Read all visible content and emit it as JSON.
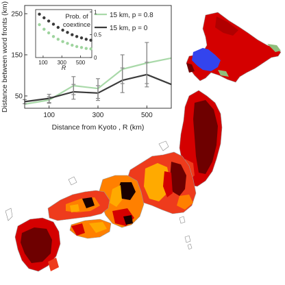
{
  "colors": {
    "map_dark_red": "#6e0000",
    "map_red": "#d40000",
    "map_orange_red": "#ee3b1c",
    "map_orange": "#ff8000",
    "map_amber": "#ffaa00",
    "map_black": "#1a0000",
    "map_blue": "#3344ee",
    "map_green": "#8fbe7c",
    "series_light": "#a9d9a9",
    "series_dark": "#3b3b3b",
    "inset_dark_dots": "#3a3a3a",
    "inset_light_dots": "#9ed49e"
  },
  "chart_data": [
    {
      "type": "line",
      "xlabel": "Distance from Kyoto ,  R (km)",
      "ylabel": "Distance between word fronts (km)",
      "xlim": [
        0,
        600
      ],
      "ylim": [
        20,
        270
      ],
      "xticks": [
        100,
        300,
        500
      ],
      "yticks": [
        50,
        150,
        250
      ],
      "x": [
        0,
        100,
        200,
        300,
        400,
        500,
        600
      ],
      "series": [
        {
          "name": "15 km,  p = 0.8",
          "color": "#a9d9a9",
          "values": [
            30,
            40,
            75,
            68,
            115,
            130,
            142
          ],
          "error": [
            0,
            8,
            22,
            24,
            35,
            50,
            0
          ]
        },
        {
          "name": "15 km,  p = 0",
          "color": "#3b3b3b",
          "values": [
            36,
            44,
            60,
            57,
            88,
            102,
            78
          ],
          "error": [
            5,
            10,
            18,
            18,
            30,
            30,
            0
          ]
        }
      ],
      "legend_placement": "top-right",
      "grid": false
    },
    {
      "type": "scatter",
      "title": "Prob. of coextince",
      "xlabel": "R",
      "xlim": [
        20,
        620
      ],
      "ylim": [
        0,
        1.05
      ],
      "xticks": [
        100,
        300,
        500
      ],
      "yticks": [
        0,
        0.5,
        1
      ],
      "ytick_labels": [
        "0",
        "0.5",
        "1"
      ],
      "x": [
        60,
        110,
        160,
        210,
        260,
        310,
        360,
        410,
        460,
        510,
        560,
        610
      ],
      "series": [
        {
          "color": "#3a3a3a",
          "values": [
            0.95,
            0.87,
            0.8,
            0.73,
            0.66,
            0.6,
            0.55,
            0.5,
            0.46,
            0.43,
            0.4,
            0.38
          ]
        },
        {
          "color": "#9ed49e",
          "values": [
            0.72,
            0.62,
            0.54,
            0.46,
            0.4,
            0.35,
            0.31,
            0.27,
            0.24,
            0.22,
            0.2,
            0.19
          ]
        }
      ]
    }
  ]
}
